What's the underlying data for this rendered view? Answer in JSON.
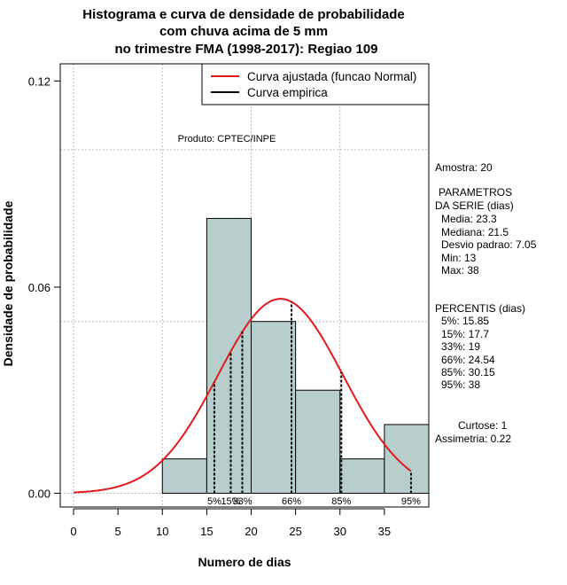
{
  "chart_data": {
    "type": "bar",
    "title_lines": [
      "Histograma e curva de densidade de probabilidade",
      "com chuva acima de 5 mm",
      "no trimestre FMA (1998-2017): Regiao 109"
    ],
    "xlabel": "Numero de dias",
    "ylabel": "Densidade de probabilidade",
    "xlim": [
      -1.5,
      40
    ],
    "ylim": [
      -0.004,
      0.125
    ],
    "x_ticks": [
      0,
      5,
      10,
      15,
      20,
      25,
      30,
      35
    ],
    "x_tick_labels": [
      "0",
      "5",
      "10",
      "15",
      "20",
      "25",
      "30",
      "35"
    ],
    "y_ticks": [
      0,
      0.06,
      0.12
    ],
    "y_tick_labels": [
      "0.00",
      "0.06",
      "0.12"
    ],
    "grid_x": [
      0,
      10,
      20,
      30
    ],
    "grid_y": [
      0,
      0.05,
      0.1
    ],
    "bins": [
      {
        "start": 10,
        "end": 15,
        "density": 0.01
      },
      {
        "start": 15,
        "end": 20,
        "density": 0.08
      },
      {
        "start": 20,
        "end": 25,
        "density": 0.05
      },
      {
        "start": 25,
        "end": 30,
        "density": 0.03
      },
      {
        "start": 30,
        "end": 35,
        "density": 0.01
      },
      {
        "start": 35,
        "end": 40,
        "density": 0.02
      }
    ],
    "fitted_curve": {
      "name": "Curva ajustada (funcao Normal)",
      "color": "#e31a1c",
      "mean": 23.3,
      "sd": 7.05,
      "x_from": 0,
      "x_to": 38
    },
    "empirical_curve": {
      "name": "Curva empirica",
      "color": "#000000"
    },
    "percentile_lines": [
      {
        "label": "5%",
        "value": 15.85
      },
      {
        "label": "15%",
        "value": 17.7
      },
      {
        "label": "33%",
        "value": 19
      },
      {
        "label": "66%",
        "value": 24.54
      },
      {
        "label": "85%",
        "value": 30.15
      },
      {
        "label": "95%",
        "value": 38
      }
    ],
    "bar_color": "#b7cecd",
    "product_label": "Produto: CPTEC/INPE",
    "legend_position": "top-right"
  },
  "stats_panel": {
    "amostra": "Amostra: 20",
    "params_title_1": "PARAMETROS",
    "params_title_2": "DA SERIE (dias)",
    "media": "Media: 23.3",
    "mediana": "Mediana: 21.5",
    "desvio": "Desvio padrao: 7.05",
    "min": "Min: 13",
    "max": "Max: 38",
    "percentis_title": "PERCENTIS (dias)",
    "p5": "5%: 15.85",
    "p15": "15%: 17.7",
    "p33": "33%: 19",
    "p66": "66%: 24.54",
    "p85": "85%: 30.15",
    "p95": "95%: 38",
    "curtose": "Curtose: 1",
    "assimetria": "Assimetria: 0.22"
  }
}
